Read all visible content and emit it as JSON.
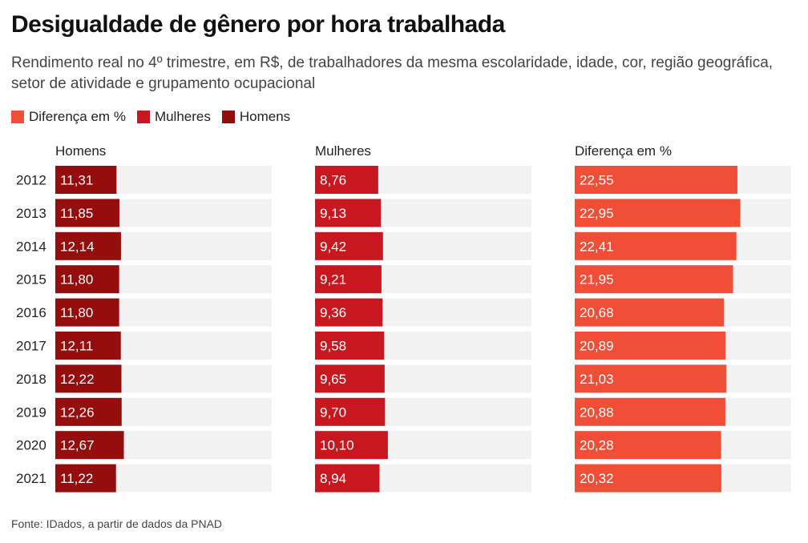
{
  "title": "Desigualdade de gênero por hora trabalhada",
  "subtitle": "Rendimento real no 4º trimestre, em R$, de trabalhadores da mesma escolaridade, idade, cor, região geográfica, setor de atividade e grupamento ocupacional",
  "legend": [
    {
      "label": "Diferença em %",
      "color": "#f04e37"
    },
    {
      "label": "Mulheres",
      "color": "#c8171e"
    },
    {
      "label": "Homens",
      "color": "#960d0d"
    }
  ],
  "source": "Fonte: IDados, a partir de dados da PNAD",
  "chart_data": {
    "type": "bar",
    "orientation": "horizontal",
    "categories": [
      "2012",
      "2013",
      "2014",
      "2015",
      "2016",
      "2017",
      "2018",
      "2019",
      "2020",
      "2021"
    ],
    "series": [
      {
        "name": "Homens",
        "color": "#960d0d",
        "max": 40,
        "values": [
          11.31,
          11.85,
          12.14,
          11.8,
          11.8,
          12.11,
          12.22,
          12.26,
          12.67,
          11.22
        ],
        "labels": [
          "11,31",
          "11,85",
          "12,14",
          "11,80",
          "11,80",
          "12,11",
          "12,22",
          "12,26",
          "12,67",
          "11,22"
        ]
      },
      {
        "name": "Mulheres",
        "color": "#c8171e",
        "max": 30,
        "values": [
          8.76,
          9.13,
          9.42,
          9.21,
          9.36,
          9.58,
          9.65,
          9.7,
          10.1,
          8.94
        ],
        "labels": [
          "8,76",
          "9,13",
          "9,42",
          "9,21",
          "9,36",
          "9,58",
          "9,65",
          "9,70",
          "10,10",
          "8,94"
        ]
      },
      {
        "name": "Diferença em %",
        "color": "#f04e37",
        "max": 30,
        "values": [
          22.55,
          22.95,
          22.41,
          21.95,
          20.68,
          20.89,
          21.03,
          20.88,
          20.28,
          20.32
        ],
        "labels": [
          "22,55",
          "22,95",
          "22,41",
          "21,95",
          "20,68",
          "20,89",
          "21,03",
          "20,88",
          "20,28",
          "20,32"
        ]
      }
    ],
    "track_color": "#f2f2f2"
  }
}
